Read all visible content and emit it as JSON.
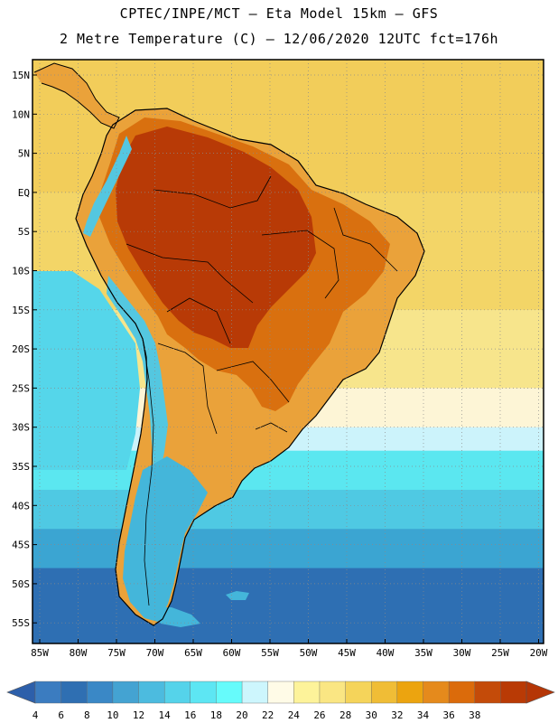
{
  "title_line_1": "CPTEC/INPE/MCT —  Eta Model 15km — GFS",
  "title_line_2": "2 Metre Temperature (C) — 12/06/2020 12UTC fct=176h",
  "map": {
    "lat_ticks": [
      "15N",
      "10N",
      "5N",
      "EQ",
      "5S",
      "10S",
      "15S",
      "20S",
      "25S",
      "30S",
      "35S",
      "40S",
      "45S",
      "50S",
      "55S"
    ],
    "lon_ticks": [
      "85W",
      "80W",
      "75W",
      "70W",
      "65W",
      "60W",
      "55W",
      "50W",
      "45W",
      "40W",
      "35W",
      "30W",
      "25W",
      "20W"
    ],
    "lat_values": [
      15,
      10,
      5,
      0,
      -5,
      -10,
      -15,
      -20,
      -25,
      -30,
      -35,
      -40,
      -45,
      -50,
      -55
    ],
    "lon_values": [
      -85,
      -80,
      -75,
      -70,
      -65,
      -60,
      -55,
      -50,
      -45,
      -40,
      -35,
      -30,
      -25,
      -20
    ],
    "ocean_bands": [
      {
        "lat_from": 17,
        "lat_to": 0,
        "color": "#f2cd5a"
      },
      {
        "lat_from": 0,
        "lat_to": -15,
        "color": "#f3d567"
      },
      {
        "lat_from": -15,
        "lat_to": -25,
        "color": "#f7e58c"
      },
      {
        "lat_from": -25,
        "lat_to": -30,
        "color": "#fdf5d6"
      },
      {
        "lat_from": -30,
        "lat_to": -33,
        "color": "#ccf3fb"
      },
      {
        "lat_from": -33,
        "lat_to": -38,
        "color": "#5be7f0"
      },
      {
        "lat_from": -38,
        "lat_to": -43,
        "color": "#4fc9e3"
      },
      {
        "lat_from": -43,
        "lat_to": -48,
        "color": "#3ba5d2"
      },
      {
        "lat_from": -48,
        "lat_to": -58,
        "color": "#2e6fb3"
      }
    ],
    "pacific_color": "#55d6ea",
    "land_hot_color": "#b83a06",
    "land_warm_color": "#d9700f",
    "land_mild_color": "#eaa23a",
    "andes_cool_color": "#54c7e0",
    "patagonia_color": "#44b6da"
  },
  "colorbar": {
    "labels": [
      "4",
      "6",
      "8",
      "10",
      "12",
      "14",
      "16",
      "18",
      "20",
      "22",
      "24",
      "26",
      "28",
      "30",
      "32",
      "34",
      "36",
      "38"
    ],
    "colors": [
      "#3b7cc0",
      "#2f6fb2",
      "#3a88c6",
      "#44a3d2",
      "#4cbbdf",
      "#55d3ea",
      "#5de6f3",
      "#66fbfb",
      "#cdf6fd",
      "#fffbe7",
      "#fdf39a",
      "#fae683",
      "#f5d45a",
      "#f0bd36",
      "#eca40f",
      "#e58a1c",
      "#db6b0b",
      "#c44b09",
      "#b93a05"
    ],
    "under_color": "#2d5faa",
    "over_color": "#b53606"
  }
}
